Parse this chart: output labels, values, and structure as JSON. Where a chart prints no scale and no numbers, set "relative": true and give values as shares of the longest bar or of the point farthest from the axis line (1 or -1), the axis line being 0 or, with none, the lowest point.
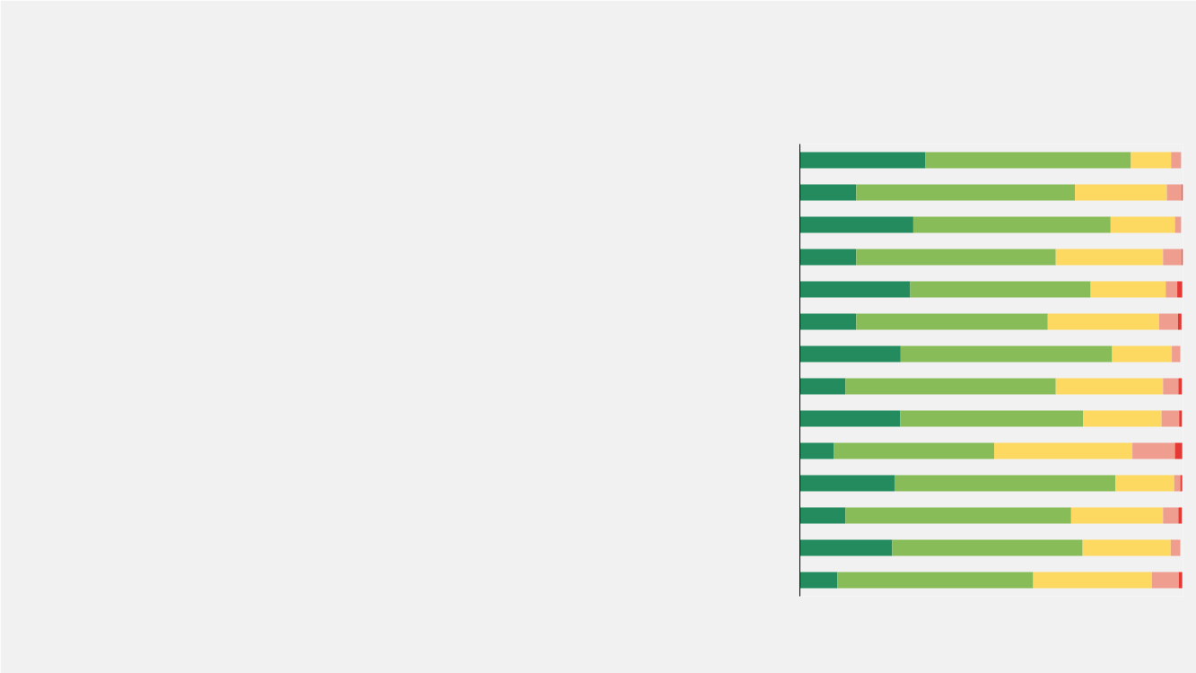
{
  "chart_data": {
    "type": "bar",
    "orientation": "horizontal",
    "stacked": true,
    "relative": true,
    "categories": [
      null,
      null,
      null,
      null,
      null,
      null,
      null,
      null,
      null,
      null,
      null,
      null,
      null,
      null
    ],
    "series": [
      {
        "color": "#238b5e",
        "values": [
          0.328,
          0.147,
          0.296,
          0.147,
          0.288,
          0.147,
          0.263,
          0.119,
          0.262,
          0.088,
          0.247,
          0.119,
          0.241,
          0.098
        ]
      },
      {
        "color": "#87bc58",
        "values": [
          0.536,
          0.571,
          0.515,
          0.521,
          0.471,
          0.5,
          0.552,
          0.549,
          0.477,
          0.419,
          0.577,
          0.589,
          0.497,
          0.511
        ]
      },
      {
        "color": "#fed961",
        "values": [
          0.105,
          0.24,
          0.168,
          0.28,
          0.196,
          0.291,
          0.156,
          0.28,
          0.205,
          0.361,
          0.153,
          0.24,
          0.23,
          0.31
        ]
      },
      {
        "color": "#ef9d8f",
        "values": [
          0.026,
          0.039,
          0.016,
          0.049,
          0.03,
          0.049,
          0.022,
          0.04,
          0.046,
          0.111,
          0.016,
          0.04,
          0.025,
          0.07
        ]
      },
      {
        "color": "#e53935",
        "values": [
          null,
          0.003,
          null,
          0.003,
          0.013,
          0.009,
          null,
          0.009,
          0.007,
          0.019,
          0.005,
          0.009,
          null,
          0.009
        ]
      }
    ]
  }
}
